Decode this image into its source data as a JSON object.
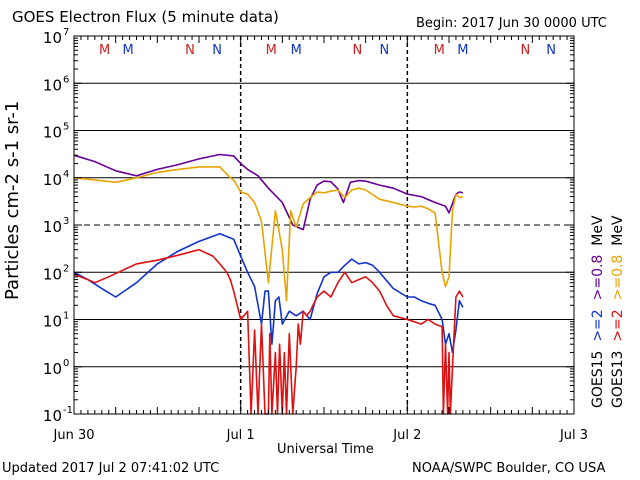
{
  "header": {
    "title": "GOES Electron Flux (5 minute data)",
    "begin": "Begin: 2017 Jun 30 0000 UTC"
  },
  "footer": {
    "updated": "Updated 2017 Jul  2 07:41:02 UTC",
    "source": "NOAA/SWPC Boulder, CO USA"
  },
  "colors": {
    "goes15_gt0_8": "#660099",
    "goes13_gt0_8": "#e8a300",
    "goes15_gt2": "#1133cc",
    "goes13_gt2": "#dd1111",
    "marker_m": "#cc2222",
    "marker_n_red": "#cc2222",
    "marker_m_blue": "#1133cc",
    "marker_n_blue": "#1133cc"
  },
  "chart_data": {
    "type": "line",
    "title": "GOES Electron Flux (5 minute data)",
    "xlabel": "Universal Time",
    "ylabel": "Particles cm-2 s-1 sr-1",
    "yscale": "log",
    "ylim": [
      0.1,
      10000000
    ],
    "xlim": [
      0,
      72
    ],
    "x_units": "hours since 2017 Jun 30 0000 UTC",
    "x_ticks": [
      {
        "x": 0,
        "label": "Jun 30"
      },
      {
        "x": 24,
        "label": "Jul 1"
      },
      {
        "x": 48,
        "label": "Jul 2"
      },
      {
        "x": 72,
        "label": "Jul 3"
      }
    ],
    "y_ticks": [
      {
        "value": 0.1,
        "base": "10",
        "exp": "-1"
      },
      {
        "value": 1,
        "base": "10",
        "exp": "0"
      },
      {
        "value": 10,
        "base": "10",
        "exp": "1"
      },
      {
        "value": 100,
        "base": "10",
        "exp": "2"
      },
      {
        "value": 1000,
        "base": "10",
        "exp": "3"
      },
      {
        "value": 10000,
        "base": "10",
        "exp": "4"
      },
      {
        "value": 100000,
        "base": "10",
        "exp": "5"
      },
      {
        "value": 1000000,
        "base": "10",
        "exp": "6"
      },
      {
        "value": 10000000,
        "base": "10",
        "exp": "7"
      }
    ],
    "threshold": 1000,
    "day_boundaries": [
      24,
      48
    ],
    "midnight_noon_markers": [
      {
        "x": 4.4,
        "label": "M",
        "color": "#cc2222"
      },
      {
        "x": 7.8,
        "label": "M",
        "color": "#1133cc"
      },
      {
        "x": 16.7,
        "label": "N",
        "color": "#cc2222"
      },
      {
        "x": 20.6,
        "label": "N",
        "color": "#1133cc"
      },
      {
        "x": 28.4,
        "label": "M",
        "color": "#cc2222"
      },
      {
        "x": 32.0,
        "label": "M",
        "color": "#1133cc"
      },
      {
        "x": 40.8,
        "label": "N",
        "color": "#cc2222"
      },
      {
        "x": 44.7,
        "label": "N",
        "color": "#1133cc"
      },
      {
        "x": 52.6,
        "label": "M",
        "color": "#cc2222"
      },
      {
        "x": 56.0,
        "label": "M",
        "color": "#1133cc"
      },
      {
        "x": 65.0,
        "label": "N",
        "color": "#cc2222"
      },
      {
        "x": 68.7,
        "label": "N",
        "color": "#1133cc"
      }
    ],
    "legend": [
      {
        "satellite": "GOES15",
        "energy": ">=0.8",
        "unit": "MeV",
        "color": "#660099"
      },
      {
        "satellite": "GOES13",
        "energy": ">=0.8",
        "unit": "MeV",
        "color": "#e8a300"
      },
      {
        "satellite": "GOES15",
        "energy": ">=2",
        "unit": "",
        "color": "#1133cc"
      },
      {
        "satellite": "GOES13",
        "energy": ">=2",
        "unit": "",
        "color": "#dd1111"
      }
    ],
    "series": [
      {
        "name": "GOES15 >=0.8 MeV",
        "color": "#660099",
        "x": [
          0,
          3,
          6,
          9,
          12,
          15,
          18,
          21,
          23,
          24,
          25,
          26.5,
          28,
          30,
          31.5,
          33,
          34,
          35,
          36,
          37,
          38,
          38.8,
          39.8,
          41,
          42,
          44,
          46,
          48,
          50,
          52,
          53.5,
          54,
          55,
          55.5,
          56
        ],
        "y": [
          30000,
          22000,
          14000,
          11000,
          15000,
          19000,
          25000,
          31000,
          29000,
          20000,
          15000,
          11000,
          6000,
          3000,
          1000,
          800,
          3500,
          7000,
          8500,
          8200,
          5800,
          3000,
          8000,
          8700,
          8500,
          7000,
          6000,
          4500,
          4000,
          3000,
          2500,
          1800,
          4500,
          5000,
          4800
        ]
      },
      {
        "name": "GOES13 >=0.8 MeV",
        "color": "#e8a300",
        "x": [
          0,
          3,
          6,
          9,
          12,
          15,
          18,
          21,
          22.5,
          23,
          24,
          25,
          26,
          27,
          28,
          29,
          30,
          30.6,
          31.2,
          32,
          33,
          34,
          35,
          36,
          37,
          38,
          39,
          40,
          41,
          42,
          44,
          46,
          48,
          49,
          50,
          51,
          52,
          53,
          53.5,
          54,
          54.5,
          55,
          55.5,
          56
        ],
        "y": [
          10000,
          9000,
          8000,
          10000,
          13000,
          15000,
          17000,
          17000,
          10000,
          9000,
          5000,
          4500,
          3000,
          1200,
          60,
          2000,
          300,
          25,
          2000,
          900,
          2800,
          3800,
          5000,
          4800,
          5200,
          5500,
          3800,
          5500,
          6000,
          5500,
          3500,
          3000,
          2500,
          2400,
          2500,
          2200,
          1800,
          100,
          50,
          80,
          2000,
          4500,
          3800,
          4000
        ]
      },
      {
        "name": "GOES15 >=2 MeV",
        "color": "#1133cc",
        "x": [
          0,
          2,
          4,
          6,
          9,
          12,
          15,
          18,
          21,
          23,
          24,
          25,
          26,
          27,
          27.5,
          28,
          28.5,
          29,
          29.5,
          30,
          31,
          32,
          33,
          34,
          35,
          36,
          37,
          38,
          39,
          40,
          41,
          42,
          43,
          44,
          46,
          48,
          49,
          50,
          51,
          52,
          53,
          53.5,
          54,
          54.5,
          55,
          55.5,
          56
        ],
        "y": [
          100,
          70,
          45,
          30,
          60,
          150,
          280,
          450,
          650,
          500,
          220,
          100,
          50,
          8,
          40,
          40,
          3,
          25,
          30,
          8,
          15,
          12,
          15,
          10,
          35,
          80,
          100,
          100,
          140,
          190,
          150,
          160,
          140,
          100,
          45,
          30,
          30,
          25,
          22,
          20,
          10,
          3,
          5,
          2,
          6,
          25,
          18
        ]
      },
      {
        "name": "GOES13 >=2 MeV",
        "color": "#dd1111",
        "x": [
          0,
          2,
          3,
          5,
          7,
          9,
          12,
          15,
          18,
          20,
          21,
          22,
          22.5,
          23,
          23.5,
          24,
          25,
          25.5,
          26,
          26.5,
          27,
          27.5,
          28,
          28.2,
          28.5,
          29,
          29.3,
          29.6,
          30,
          30.3,
          30.6,
          31,
          31.5,
          32,
          32.3,
          32.6,
          33,
          33.5,
          34,
          35,
          36,
          37,
          38,
          39,
          40,
          41,
          42,
          43,
          44,
          45,
          46,
          48,
          49,
          50,
          51,
          52,
          53,
          53.2,
          53.5,
          53.8,
          54,
          54.2,
          54.5,
          55,
          55.5,
          56
        ],
        "y": [
          90,
          70,
          60,
          80,
          110,
          150,
          180,
          230,
          300,
          220,
          150,
          100,
          70,
          40,
          20,
          10,
          15,
          0.1,
          6,
          0.1,
          8,
          0.1,
          0.1,
          5,
          0.1,
          2,
          0.1,
          3,
          0.1,
          2,
          0.1,
          5,
          0.1,
          1,
          8,
          3,
          15,
          12,
          15,
          30,
          40,
          30,
          60,
          100,
          60,
          70,
          80,
          60,
          40,
          20,
          12,
          10,
          9,
          8,
          10,
          8,
          7,
          0.1,
          3,
          0.1,
          2,
          0.1,
          1,
          30,
          40,
          30
        ]
      }
    ]
  }
}
